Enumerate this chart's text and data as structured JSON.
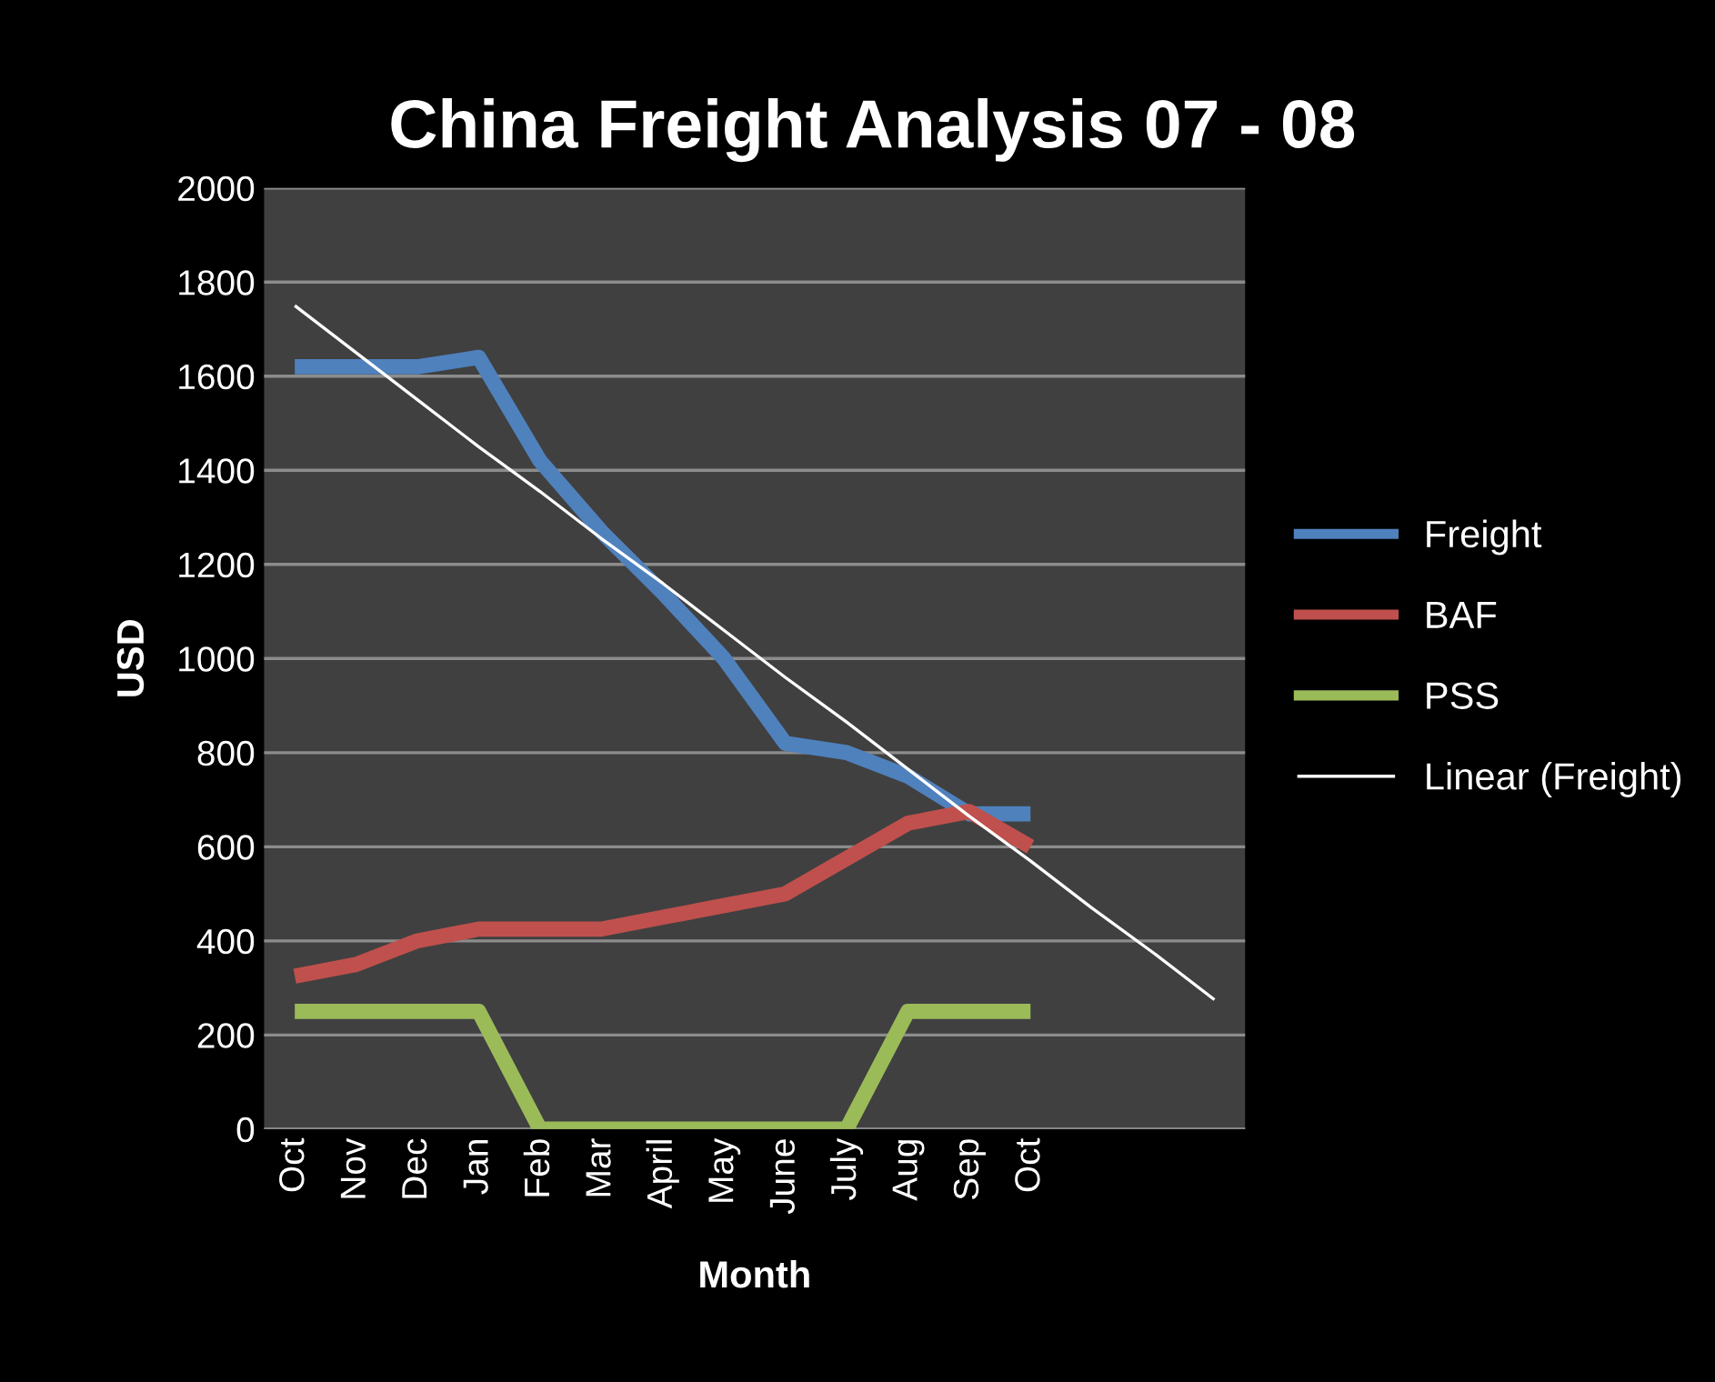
{
  "chart_data": {
    "type": "line",
    "title": "China Freight Analysis 07 - 08",
    "xlabel": "Month",
    "ylabel": "USD",
    "categories": [
      "Oct",
      "Nov",
      "Dec",
      "Jan",
      "Feb",
      "Mar",
      "April",
      "May",
      "June",
      "July",
      "Aug",
      "Sep",
      "Oct",
      null,
      null,
      null
    ],
    "series": [
      {
        "name": "Freight",
        "color": "#4f81bd",
        "values": [
          1620,
          1620,
          1620,
          1640,
          1420,
          1270,
          1140,
          1000,
          820,
          800,
          750,
          670,
          670,
          null,
          null,
          null
        ]
      },
      {
        "name": "BAF",
        "color": "#c0504d",
        "values": [
          325,
          350,
          400,
          425,
          425,
          425,
          450,
          475,
          500,
          575,
          650,
          675,
          600,
          null,
          null,
          null
        ]
      },
      {
        "name": "PSS",
        "color": "#9bbb59",
        "values": [
          250,
          250,
          250,
          250,
          0,
          0,
          0,
          0,
          0,
          0,
          250,
          250,
          250,
          null,
          null,
          null
        ]
      },
      {
        "name": "Linear (Freight)",
        "color": "#ffffff",
        "values": [
          1750,
          1650,
          1550,
          1450,
          1355,
          1255,
          1160,
          1060,
          960,
          865,
          765,
          665,
          570,
          470,
          375,
          275
        ]
      }
    ],
    "ylim": [
      0,
      2000
    ],
    "yticks": [
      0,
      200,
      400,
      600,
      800,
      1000,
      1200,
      1400,
      1600,
      1800,
      2000
    ],
    "grid": "y",
    "legend": "right",
    "marker": "none",
    "line_style": "solid"
  }
}
